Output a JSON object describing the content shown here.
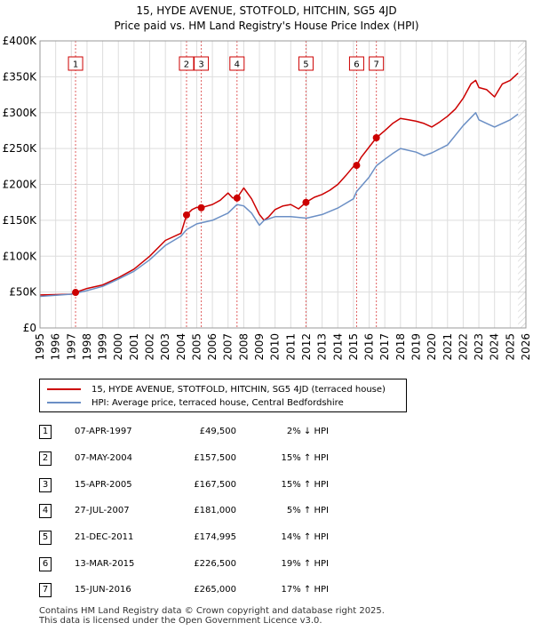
{
  "chart_data": {
    "type": "line",
    "title": "15, HYDE AVENUE, STOTFOLD, HITCHIN, SG5 4JD",
    "subtitle": "Price paid vs. HM Land Registry's House Price Index (HPI)",
    "xlim": [
      1995,
      2026
    ],
    "ylim": [
      0,
      400000
    ],
    "x_ticks": [
      1995,
      1996,
      1997,
      1998,
      1999,
      2000,
      2001,
      2002,
      2003,
      2004,
      2005,
      2006,
      2007,
      2008,
      2009,
      2010,
      2011,
      2012,
      2013,
      2014,
      2015,
      2016,
      2017,
      2018,
      2019,
      2020,
      2021,
      2022,
      2023,
      2024,
      2025,
      2026
    ],
    "y_ticks": [
      {
        "value": 0,
        "label": "£0"
      },
      {
        "value": 50000,
        "label": "£50K"
      },
      {
        "value": 100000,
        "label": "£100K"
      },
      {
        "value": 150000,
        "label": "£150K"
      },
      {
        "value": 200000,
        "label": "£200K"
      },
      {
        "value": 250000,
        "label": "£250K"
      },
      {
        "value": 300000,
        "label": "£300K"
      },
      {
        "value": 350000,
        "label": "£350K"
      },
      {
        "value": 400000,
        "label": "£400K"
      }
    ],
    "series": [
      {
        "name": "15, HYDE AVENUE, STOTFOLD, HITCHIN, SG5 4JD (terraced house)",
        "color": "#cc0000",
        "x": [
          1995,
          1996,
          1997,
          1997.27,
          1998,
          1999,
          2000,
          2001,
          2002,
          2003,
          2004,
          2004.35,
          2004.7,
          2005,
          2005.29,
          2006,
          2006.5,
          2007,
          2007.3,
          2007.57,
          2008,
          2008.5,
          2009,
          2009.3,
          2009.6,
          2010,
          2010.5,
          2011,
          2011.5,
          2011.97,
          2012.5,
          2013,
          2013.5,
          2014,
          2014.5,
          2015,
          2015.2,
          2015.5,
          2016,
          2016.46,
          2017,
          2017.5,
          2018,
          2018.5,
          2019,
          2019.5,
          2020,
          2020.5,
          2021,
          2021.5,
          2022,
          2022.5,
          2022.8,
          2023,
          2023.5,
          2024,
          2024.5,
          2025,
          2025.5
        ],
        "y": [
          46000,
          46500,
          47000,
          49500,
          55000,
          60000,
          70000,
          82000,
          100000,
          122000,
          132000,
          157500,
          165000,
          168000,
          167500,
          172000,
          178000,
          188000,
          181000,
          181000,
          195000,
          180000,
          158000,
          150000,
          155000,
          165000,
          170000,
          172000,
          166000,
          174995,
          182000,
          186000,
          192000,
          200000,
          212000,
          225000,
          226500,
          238000,
          252000,
          265000,
          275000,
          285000,
          292000,
          290000,
          288000,
          285000,
          280000,
          287000,
          295000,
          305000,
          320000,
          340000,
          345000,
          335000,
          332000,
          322000,
          340000,
          345000,
          355000
        ]
      },
      {
        "name": "HPI: Average price, terraced house, Central Bedfordshire",
        "color": "#6b8fc5",
        "x": [
          1995,
          1996,
          1997,
          1998,
          1999,
          2000,
          2001,
          2002,
          2003,
          2004,
          2004.35,
          2005,
          2006,
          2007,
          2007.57,
          2008,
          2008.5,
          2009,
          2009.3,
          2010,
          2011,
          2012,
          2013,
          2014,
          2015,
          2015.2,
          2016,
          2016.46,
          2017,
          2017.5,
          2018,
          2019,
          2019.5,
          2020,
          2021,
          2022,
          2022.8,
          2023,
          2023.5,
          2024,
          2025,
          2025.5
        ],
        "y": [
          44000,
          45500,
          47000,
          52000,
          58000,
          68000,
          79000,
          95000,
          115000,
          128000,
          137000,
          145000,
          150000,
          160000,
          172000,
          170000,
          160000,
          143000,
          150000,
          155000,
          155000,
          153000,
          158000,
          167000,
          180000,
          190000,
          210000,
          226000,
          235000,
          243000,
          250000,
          245000,
          240000,
          244000,
          255000,
          282000,
          300000,
          290000,
          285000,
          280000,
          290000,
          298000
        ]
      }
    ],
    "sales": [
      {
        "num": "1",
        "year": 1997.27,
        "price": 49500
      },
      {
        "num": "2",
        "year": 2004.35,
        "price": 157500
      },
      {
        "num": "3",
        "year": 2005.29,
        "price": 167500
      },
      {
        "num": "4",
        "year": 2007.57,
        "price": 181000
      },
      {
        "num": "5",
        "year": 2011.97,
        "price": 174995
      },
      {
        "num": "6",
        "year": 2015.2,
        "price": 226500
      },
      {
        "num": "7",
        "year": 2016.46,
        "price": 265000
      }
    ],
    "marker_color": "#cc0000",
    "grid_color": "#dddddd",
    "vline_color": "#e06060",
    "forecast_hatch_from": 2025.5
  },
  "legend": {
    "series1": "15, HYDE AVENUE, STOTFOLD, HITCHIN, SG5 4JD (terraced house)",
    "series2": "HPI: Average price, terraced house, Central Bedfordshire",
    "color1": "#cc0000",
    "color2": "#6b8fc5"
  },
  "table": [
    {
      "num": "1",
      "date": "07-APR-1997",
      "price": "£49,500",
      "hpi": "2% ↓ HPI"
    },
    {
      "num": "2",
      "date": "07-MAY-2004",
      "price": "£157,500",
      "hpi": "15% ↑ HPI"
    },
    {
      "num": "3",
      "date": "15-APR-2005",
      "price": "£167,500",
      "hpi": "15% ↑ HPI"
    },
    {
      "num": "4",
      "date": "27-JUL-2007",
      "price": "£181,000",
      "hpi": "5% ↑ HPI"
    },
    {
      "num": "5",
      "date": "21-DEC-2011",
      "price": "£174,995",
      "hpi": "14% ↑ HPI"
    },
    {
      "num": "6",
      "date": "13-MAR-2015",
      "price": "£226,500",
      "hpi": "19% ↑ HPI"
    },
    {
      "num": "7",
      "date": "15-JUN-2016",
      "price": "£265,000",
      "hpi": "17% ↑ HPI"
    }
  ],
  "footer": {
    "line1": "Contains HM Land Registry data © Crown copyright and database right 2025.",
    "line2": "This data is licensed under the Open Government Licence v3.0."
  }
}
